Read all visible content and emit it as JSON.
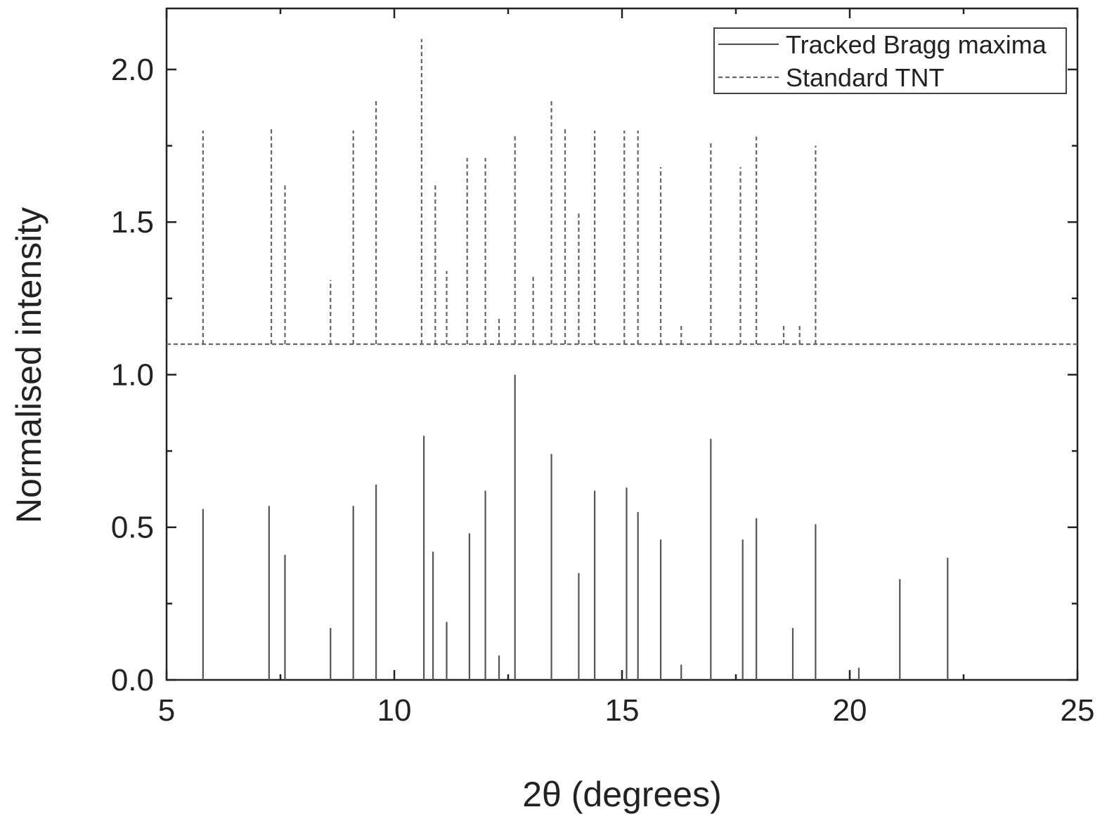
{
  "chart_data": {
    "type": "stick",
    "xlabel": "2θ (degrees)",
    "ylabel": "Normalised intensity",
    "xlim": [
      5,
      25
    ],
    "ylim": [
      0,
      2.2
    ],
    "x_ticks": [
      5,
      10,
      15,
      20,
      25
    ],
    "x_tick_labels": [
      "5",
      "10",
      "15",
      "20",
      "25"
    ],
    "y_ticks": [
      0.0,
      0.5,
      1.0,
      1.5,
      2.0
    ],
    "y_tick_labels": [
      "0.0",
      "0.5",
      "1.0",
      "1.5",
      "2.0"
    ],
    "legend_position": "top-right",
    "series": [
      {
        "name": "Tracked Bragg maxima",
        "style": "solid",
        "color": "#555555",
        "baseline": 0.0,
        "x": [
          5.8,
          7.25,
          7.6,
          8.6,
          9.1,
          9.6,
          10.65,
          10.85,
          11.15,
          11.65,
          12.0,
          12.3,
          12.65,
          13.45,
          14.05,
          14.4,
          15.1,
          15.35,
          15.85,
          16.3,
          16.95,
          17.65,
          17.95,
          18.75,
          19.25,
          20.2,
          21.1,
          22.15
        ],
        "values": [
          0.56,
          0.57,
          0.41,
          0.17,
          0.57,
          0.64,
          0.8,
          0.42,
          0.19,
          0.48,
          0.62,
          0.08,
          1.0,
          0.74,
          0.35,
          0.62,
          0.63,
          0.55,
          0.46,
          0.05,
          0.79,
          0.46,
          0.53,
          0.17,
          0.51,
          0.04,
          0.33,
          0.4
        ]
      },
      {
        "name": "Standard TNT",
        "style": "dashed",
        "color": "#666666",
        "baseline": 1.1,
        "x": [
          5.8,
          7.3,
          7.6,
          8.6,
          9.1,
          9.6,
          10.6,
          10.9,
          11.15,
          11.6,
          12.0,
          12.3,
          12.65,
          13.05,
          13.45,
          13.75,
          14.05,
          14.4,
          15.05,
          15.35,
          15.85,
          16.3,
          16.95,
          17.6,
          17.95,
          18.55,
          18.9,
          19.25
        ],
        "values": [
          1.8,
          1.81,
          1.62,
          1.31,
          1.8,
          1.9,
          2.1,
          1.63,
          1.34,
          1.71,
          1.71,
          1.19,
          1.79,
          1.33,
          1.9,
          1.81,
          1.53,
          1.8,
          1.8,
          1.8,
          1.68,
          1.16,
          1.76,
          1.68,
          1.78,
          1.16,
          1.16,
          1.75
        ]
      }
    ]
  }
}
